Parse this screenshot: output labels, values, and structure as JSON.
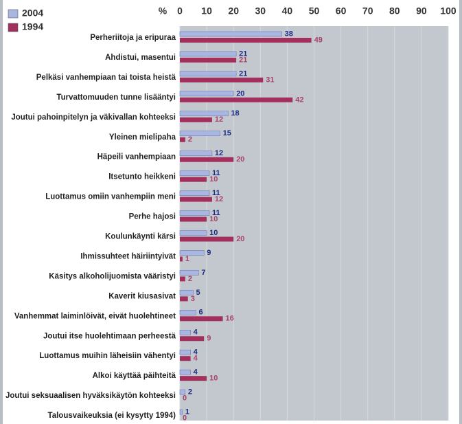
{
  "chart_data": {
    "type": "hbar",
    "x_label": "%",
    "categories": [
      "Perheriitoja ja eripuraa",
      "Ahdistui, masentui",
      "Pelkäsi vanhempiaan tai toista heistä",
      "Turvattomuuden tunne lisääntyi",
      "Joutui pahoinpitelyn ja väkivallan kohteeksi",
      "Yleinen mielipaha",
      "Häpeili vanhempiaan",
      "Itsetunto heikkeni",
      "Luottamus omiin vanhempiin meni",
      "Perhe hajosi",
      "Koulunkäynti kärsi",
      "Ihmissuhteet häiriintyivät",
      "Käsitys alkoholijuomista vääristyi",
      "Kaverit kiusasivat",
      "Vanhemmat laiminlöivät, eivät huolehtineet",
      "Joutui itse huolehtimaan perheestä",
      "Luottamus muihin läheisiin vähentyi",
      "Alkoi käyttää päihteitä",
      "Joutui seksuaalisen hyväksikäytön kohteeksi",
      "Talousvaikeuksia (ei kysytty 1994)"
    ],
    "series": [
      {
        "name": "2004",
        "color": "#aab6e2",
        "label_color": "#1c2a86",
        "values": [
          38,
          21,
          21,
          20,
          18,
          15,
          12,
          11,
          11,
          11,
          10,
          9,
          7,
          5,
          6,
          4,
          4,
          4,
          2,
          1
        ]
      },
      {
        "name": "1994",
        "color": "#a3305c",
        "label_color": "#a8426a",
        "values": [
          49,
          21,
          31,
          42,
          12,
          2,
          20,
          10,
          12,
          10,
          20,
          1,
          2,
          3,
          16,
          9,
          4,
          10,
          0,
          0
        ]
      }
    ],
    "xlim": [
      0,
      100
    ],
    "xticks": [
      0,
      10,
      20,
      30,
      40,
      50,
      60,
      70,
      80,
      90,
      100
    ],
    "grid": true,
    "legend": "top-left"
  }
}
